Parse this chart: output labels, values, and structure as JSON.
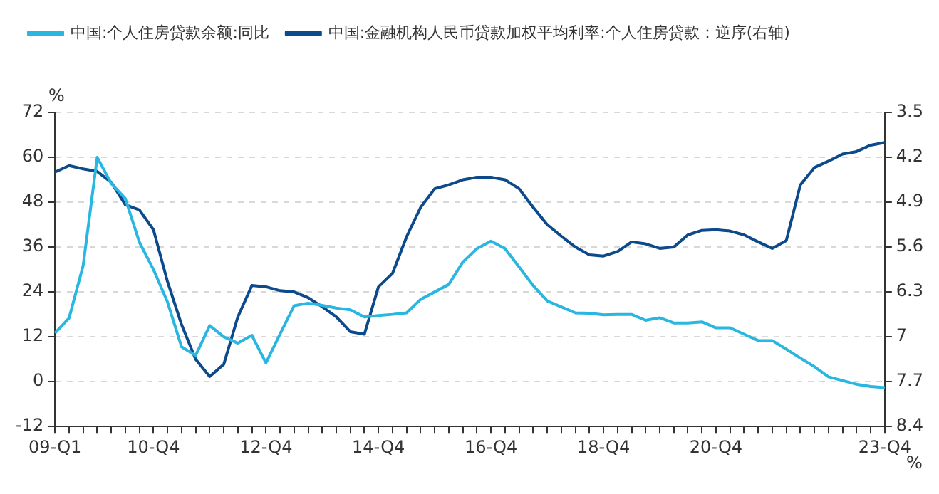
{
  "chart_data": {
    "type": "line",
    "ylabel": "%",
    "y2label": "%",
    "categories": [
      "09-Q1",
      null,
      null,
      null,
      null,
      null,
      null,
      "10-Q4",
      null,
      null,
      null,
      null,
      null,
      null,
      null,
      "12-Q4",
      null,
      null,
      null,
      null,
      null,
      null,
      null,
      "14-Q4",
      null,
      null,
      null,
      null,
      null,
      null,
      null,
      "16-Q4",
      null,
      null,
      null,
      null,
      null,
      null,
      null,
      "18-Q4",
      null,
      null,
      null,
      null,
      null,
      null,
      null,
      "20-Q4",
      null,
      null,
      null,
      null,
      null,
      null,
      null,
      null,
      null,
      null,
      null,
      "23-Q4"
    ],
    "series": [
      {
        "name": "中国:个人住房贷款余额:同比",
        "color": "#29b6e0",
        "values": [
          13,
          17,
          31,
          60,
          53,
          49,
          37.3,
          30,
          21.3,
          9.3,
          7,
          15,
          12,
          10.3,
          12.4,
          5,
          12.7,
          20.3,
          21,
          20.4,
          19.7,
          19.2,
          17.3,
          17.7,
          18,
          18.4,
          22,
          24,
          26,
          32,
          35.6,
          37.6,
          35.6,
          30.7,
          25.7,
          21.6,
          20,
          18.4,
          18.3,
          17.9,
          18,
          18,
          16.4,
          17.1,
          15.7,
          15.7,
          16,
          14.4,
          14.4,
          12.7,
          11,
          11,
          8.7,
          6.3,
          4,
          1.3,
          0.3,
          -0.7,
          -1.3,
          -1.6
        ]
      },
      {
        "name": "中国:金融机构人民币贷款加权平均利率:个人住房贷款：逆序(右轴)",
        "color": "#0d4a8c",
        "axis": "y2",
        "values": [
          4.43,
          4.33,
          4.38,
          4.42,
          4.59,
          4.94,
          5.02,
          5.33,
          6.14,
          6.81,
          7.35,
          7.62,
          7.43,
          6.69,
          6.2,
          6.22,
          6.28,
          6.3,
          6.39,
          6.53,
          6.69,
          6.92,
          6.96,
          6.22,
          6.01,
          5.44,
          4.98,
          4.69,
          4.63,
          4.55,
          4.51,
          4.51,
          4.55,
          4.69,
          4.98,
          5.25,
          5.43,
          5.6,
          5.72,
          5.74,
          5.67,
          5.52,
          5.55,
          5.62,
          5.6,
          5.41,
          5.34,
          5.33,
          5.35,
          5.41,
          5.52,
          5.62,
          5.5,
          4.63,
          4.36,
          4.26,
          4.15,
          4.11,
          4.01,
          3.97
        ]
      }
    ],
    "ylim": [
      -12,
      72
    ],
    "yticks": [
      -12,
      0,
      12,
      24,
      36,
      48,
      60,
      72
    ],
    "y2lim": [
      8.4,
      3.5
    ],
    "y2ticks": [
      3.5,
      4.2,
      4.9,
      5.6,
      6.3,
      7,
      7.7,
      8.4
    ],
    "grid": "y",
    "legend": "top",
    "marker": "none",
    "line_style": "solid"
  }
}
